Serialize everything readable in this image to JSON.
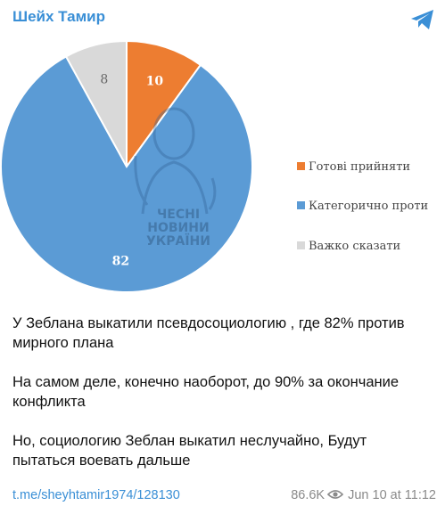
{
  "channel": {
    "name": "Шейх Тамир"
  },
  "icons": {
    "telegram": "telegram-plane-icon",
    "views": "eye-icon"
  },
  "chart_data": {
    "type": "pie",
    "title": "",
    "categories": [
      "Готові прийняти",
      "Категорично проти",
      "Важко сказати"
    ],
    "values": [
      10,
      82,
      8
    ],
    "colors": [
      "#ed7d31",
      "#5b9bd5",
      "#d9d9d9"
    ],
    "legend": "right",
    "watermark": "ЧЕСНІ НОВИНИ УКРАЇНИ"
  },
  "post": {
    "paragraphs": [
      "У Зеблана выкатили псевдосоциологию , где 82% против мирного плана",
      "На самом деле, конечно наоборот, до 90% за окончание конфликта",
      "Но, социологию Зеблан выкатил неслучайно, Будут пытаться воевать дальше"
    ],
    "link": "t.me/sheyhtamir1974/128130",
    "views": "86.6K",
    "date": "Jun 10 at 11:12"
  }
}
